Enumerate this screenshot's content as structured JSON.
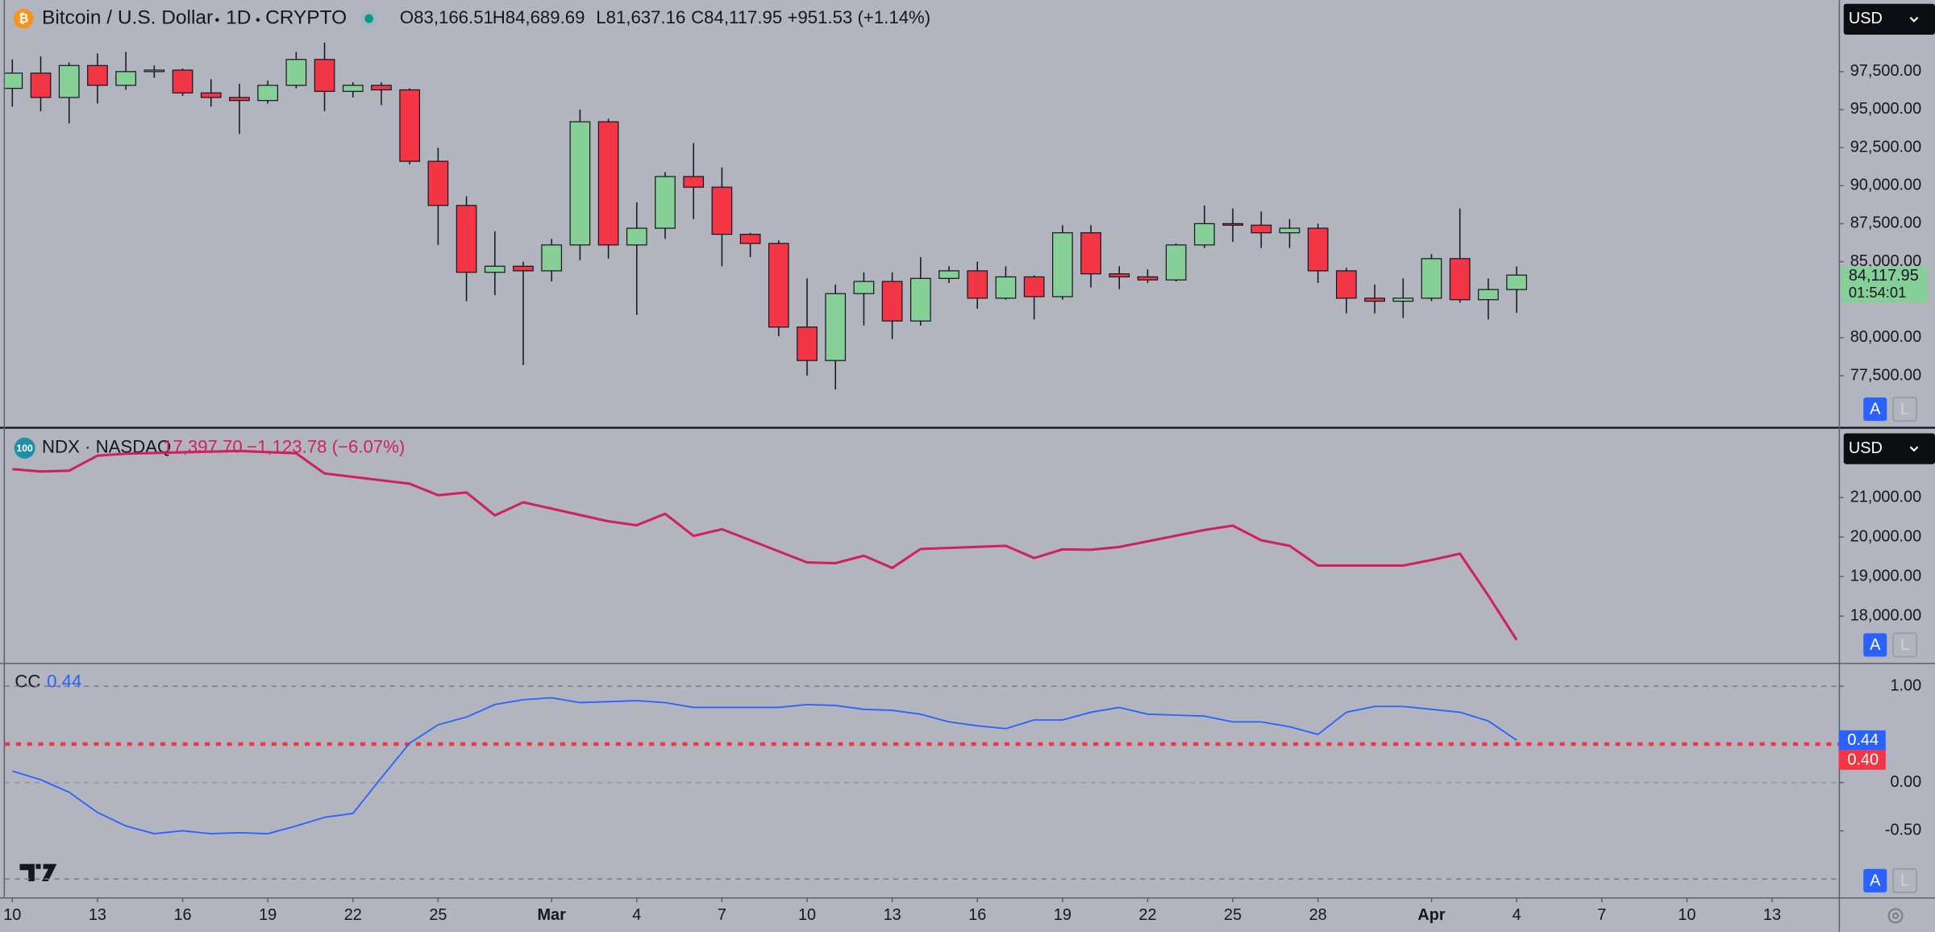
{
  "chart_data": [
    {
      "type": "candlestick",
      "title": "Bitcoin / U.S. Dollar",
      "interval": "1D",
      "exchange": "CRYPTO",
      "header_values": [
        "O83,166.51",
        "H84,689.69",
        "L81,637.16",
        "C84,117.95",
        "+951.53 (+1.14%)"
      ],
      "currency": "USD",
      "last_price_label": "84,117.95",
      "countdown": "01:54:01",
      "scale_buttons": [
        "A",
        "L"
      ],
      "up_color": "#86cf96",
      "down_color": "#f23645",
      "x": [
        "Feb 10",
        "Feb 11",
        "Feb 12",
        "Feb 13",
        "Feb 14",
        "Feb 15",
        "Feb 16",
        "Feb 17",
        "Feb 18",
        "Feb 19",
        "Feb 20",
        "Feb 21",
        "Feb 22",
        "Feb 23",
        "Feb 24",
        "Feb 25",
        "Feb 26",
        "Feb 27",
        "Feb 28",
        "Mar 1",
        "Mar 2",
        "Mar 3",
        "Mar 4",
        "Mar 5",
        "Mar 6",
        "Mar 7",
        "Mar 8",
        "Mar 9",
        "Mar 10",
        "Mar 11",
        "Mar 12",
        "Mar 13",
        "Mar 14",
        "Mar 15",
        "Mar 16",
        "Mar 17",
        "Mar 18",
        "Mar 19",
        "Mar 20",
        "Mar 21",
        "Mar 22",
        "Mar 23",
        "Mar 24",
        "Mar 25",
        "Mar 26",
        "Mar 27",
        "Mar 28",
        "Mar 29",
        "Mar 30",
        "Mar 31",
        "Apr 1",
        "Apr 2",
        "Apr 3",
        "Apr 4"
      ],
      "open": [
        96400,
        97400,
        95800,
        97900,
        96600,
        97500,
        97600,
        96100,
        95800,
        95600,
        96600,
        98300,
        96200,
        96600,
        96300,
        91600,
        88700,
        84300,
        84700,
        84400,
        86100,
        94200,
        86100,
        87200,
        90600,
        89900,
        86800,
        86200,
        80700,
        78500,
        82900,
        83700,
        81100,
        83900,
        84400,
        82600,
        84000,
        82700,
        86900,
        84200,
        84000,
        83800,
        86100,
        87500,
        87400,
        86900,
        87200,
        84400,
        82600,
        82400,
        82600,
        85200,
        82500,
        83166.51
      ],
      "high": [
        98300,
        98500,
        98100,
        98700,
        98800,
        97900,
        97700,
        97000,
        96700,
        96900,
        98800,
        99400,
        96800,
        96800,
        96400,
        92500,
        89300,
        87000,
        85000,
        86500,
        95000,
        94400,
        88900,
        90900,
        92800,
        91200,
        86900,
        86400,
        83900,
        83500,
        84300,
        84300,
        85300,
        84700,
        85000,
        84700,
        84100,
        87400,
        87400,
        84700,
        84500,
        86200,
        88700,
        88500,
        88300,
        87800,
        87500,
        84600,
        83500,
        83900,
        85500,
        88500,
        83900,
        84689.69
      ],
      "low": [
        95200,
        94900,
        94100,
        95400,
        96300,
        97100,
        95900,
        95200,
        93400,
        95400,
        96400,
        94900,
        95800,
        95300,
        91400,
        86100,
        82400,
        82800,
        78200,
        83700,
        85100,
        85200,
        81500,
        86500,
        87800,
        84700,
        85300,
        80100,
        77500,
        76600,
        80800,
        79900,
        80800,
        83600,
        81900,
        82500,
        81200,
        82500,
        83300,
        83200,
        83600,
        83700,
        85900,
        86300,
        85900,
        85900,
        83600,
        81600,
        81600,
        81300,
        82400,
        82300,
        81200,
        81637.16
      ],
      "close": [
        97400,
        95800,
        97900,
        96600,
        97500,
        97600,
        96100,
        95800,
        95600,
        96600,
        98300,
        96200,
        96600,
        96300,
        91600,
        88700,
        84300,
        84700,
        84400,
        86100,
        94200,
        86100,
        87200,
        90600,
        89900,
        86800,
        86200,
        80700,
        78500,
        82900,
        83700,
        81100,
        83900,
        84400,
        82600,
        84000,
        82700,
        86900,
        84200,
        84000,
        83800,
        86100,
        87500,
        87400,
        86900,
        87200,
        84400,
        82600,
        82400,
        82600,
        85200,
        82500,
        83166.42,
        84117.95
      ],
      "ylim": [
        74200,
        102200
      ],
      "yticks": [
        {
          "value": 77500,
          "label": "77,500.00"
        },
        {
          "value": 80000,
          "label": "80,000.00"
        },
        {
          "value": 85000,
          "label": "85,000.00"
        },
        {
          "value": 87500,
          "label": "87,500.00"
        },
        {
          "value": 90000,
          "label": "90,000.00"
        },
        {
          "value": 92500,
          "label": "92,500.00"
        },
        {
          "value": 95000,
          "label": "95,000.00"
        },
        {
          "value": 97500,
          "label": "97,500.00"
        }
      ]
    },
    {
      "type": "line",
      "title": "NDX · NASDAQ",
      "badge": "100",
      "legend_value": "17,397.70",
      "legend_change": "−1,123.78 (−6.07%)",
      "currency": "USD",
      "scale_buttons": [
        "A",
        "L"
      ],
      "color": "#d0215f",
      "x": [
        "Feb 10",
        "Feb 11",
        "Feb 12",
        "Feb 13",
        "Feb 14",
        "Feb 18",
        "Feb 19",
        "Feb 20",
        "Feb 21",
        "Feb 24",
        "Feb 25",
        "Feb 26",
        "Feb 27",
        "Feb 28",
        "Mar 3",
        "Mar 4",
        "Mar 5",
        "Mar 6",
        "Mar 7",
        "Mar 10",
        "Mar 11",
        "Mar 12",
        "Mar 13",
        "Mar 14",
        "Mar 17",
        "Mar 18",
        "Mar 19",
        "Mar 20",
        "Mar 21",
        "Mar 24",
        "Mar 25",
        "Mar 26",
        "Mar 27",
        "Mar 28",
        "Mar 31",
        "Apr 1",
        "Apr 2",
        "Apr 3",
        "Apr 4"
      ],
      "values": [
        21720,
        21660,
        21680,
        22060,
        22110,
        22180,
        22150,
        22120,
        21610,
        21350,
        21060,
        21130,
        20550,
        20880,
        20400,
        20300,
        20590,
        20030,
        20200,
        19360,
        19340,
        19530,
        19220,
        19700,
        19780,
        19470,
        19690,
        19680,
        19750,
        20180,
        20290,
        19920,
        19780,
        19280,
        19280,
        19420,
        19580,
        18521.48,
        17397.7
      ],
      "ylim": [
        16850,
        22720
      ],
      "yticks": [
        {
          "value": 18000,
          "label": "18,000.00"
        },
        {
          "value": 19000,
          "label": "19,000.00"
        },
        {
          "value": 20000,
          "label": "20,000.00"
        },
        {
          "value": 21000,
          "label": "21,000.00"
        }
      ]
    },
    {
      "type": "line",
      "title": "CC",
      "legend_value": "0.44",
      "last_value_label": "0.44",
      "scale_buttons": [
        "A",
        "L"
      ],
      "color": "#2962ff",
      "reference": {
        "value": 0.4,
        "label": "0.40",
        "color": "#f23645"
      },
      "levels": [
        1,
        0,
        -1
      ],
      "x": [
        "Feb 10",
        "Feb 11",
        "Feb 12",
        "Feb 13",
        "Feb 14",
        "Feb 15",
        "Feb 16",
        "Feb 17",
        "Feb 18",
        "Feb 19",
        "Feb 20",
        "Feb 21",
        "Feb 22",
        "Feb 23",
        "Feb 24",
        "Feb 25",
        "Feb 26",
        "Feb 27",
        "Feb 28",
        "Mar 1",
        "Mar 2",
        "Mar 3",
        "Mar 4",
        "Mar 5",
        "Mar 6",
        "Mar 7",
        "Mar 8",
        "Mar 9",
        "Mar 10",
        "Mar 11",
        "Mar 12",
        "Mar 13",
        "Mar 14",
        "Mar 15",
        "Mar 16",
        "Mar 17",
        "Mar 18",
        "Mar 19",
        "Mar 20",
        "Mar 21",
        "Mar 22",
        "Mar 23",
        "Mar 24",
        "Mar 25",
        "Mar 26",
        "Mar 27",
        "Mar 28",
        "Mar 29",
        "Mar 30",
        "Mar 31",
        "Apr 1",
        "Apr 2",
        "Apr 3",
        "Apr 4"
      ],
      "values": [
        0.12,
        0.03,
        -0.1,
        -0.31,
        -0.45,
        -0.53,
        -0.5,
        -0.53,
        -0.52,
        -0.53,
        -0.45,
        -0.36,
        -0.32,
        0.05,
        0.41,
        0.6,
        0.68,
        0.81,
        0.86,
        0.88,
        0.83,
        0.84,
        0.85,
        0.83,
        0.78,
        0.78,
        0.78,
        0.78,
        0.81,
        0.8,
        0.76,
        0.75,
        0.71,
        0.63,
        0.59,
        0.56,
        0.65,
        0.65,
        0.73,
        0.78,
        0.71,
        0.7,
        0.69,
        0.63,
        0.63,
        0.58,
        0.5,
        0.73,
        0.79,
        0.79,
        0.76,
        0.73,
        0.64,
        0.44
      ],
      "ylim": [
        -1.19,
        1.23
      ],
      "yticks": [
        {
          "value": 1,
          "label": "1.00"
        },
        {
          "value": 0,
          "label": "0.00"
        },
        {
          "value": -0.5,
          "label": "-0.50"
        }
      ],
      "xticks": [
        {
          "value": "Feb 10",
          "label": "10"
        },
        {
          "value": "Feb 13",
          "label": "13"
        },
        {
          "value": "Feb 16",
          "label": "16"
        },
        {
          "value": "Feb 19",
          "label": "19"
        },
        {
          "value": "Feb 22",
          "label": "22"
        },
        {
          "value": "Feb 25",
          "label": "25"
        },
        {
          "value": "Mar 1",
          "label": "Mar"
        },
        {
          "value": "Mar 4",
          "label": "4"
        },
        {
          "value": "Mar 7",
          "label": "7"
        },
        {
          "value": "Mar 10",
          "label": "10"
        },
        {
          "value": "Mar 13",
          "label": "13"
        },
        {
          "value": "Mar 16",
          "label": "16"
        },
        {
          "value": "Mar 19",
          "label": "19"
        },
        {
          "value": "Mar 22",
          "label": "22"
        },
        {
          "value": "Mar 25",
          "label": "25"
        },
        {
          "value": "Mar 28",
          "label": "28"
        },
        {
          "value": "Apr 1",
          "label": "Apr"
        },
        {
          "value": "Apr 4",
          "label": "4"
        },
        {
          "value": "Apr 7",
          "label": "7"
        },
        {
          "value": "Apr 10",
          "label": "10"
        },
        {
          "value": "Apr 13",
          "label": "13"
        }
      ]
    }
  ]
}
